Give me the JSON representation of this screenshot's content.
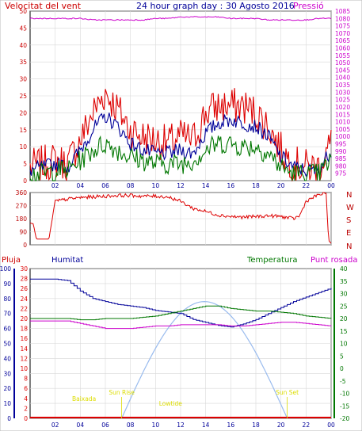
{
  "header": {
    "left": "Velocitat del vent",
    "center": "24 hour graph day : 30 Agosto 2016",
    "right": "Pressió"
  },
  "colors": {
    "red": "#dd0000",
    "blue": "#000099",
    "green": "#007700",
    "magenta": "#cc00cc",
    "frame": "#000000",
    "dir_red": "#bb0000",
    "sun": "#99bbee",
    "tide": "#dddd00",
    "wind_ylabel": "#cc0000"
  },
  "x_ticks": [
    "02",
    "04",
    "06",
    "08",
    "10",
    "12",
    "14",
    "16",
    "18",
    "20",
    "22",
    "00"
  ],
  "chart_data": [
    {
      "type": "line",
      "title": "",
      "y_left_label": "Velocitat del vent",
      "y_right_label": "Pressió",
      "ylim_left": [
        0,
        50
      ],
      "ylim_right": [
        970,
        1085
      ],
      "y_left_ticks": [
        "0",
        "5",
        "10",
        "15",
        "20",
        "25",
        "30",
        "35",
        "40",
        "45",
        "50"
      ],
      "y_right_ticks": [
        "975",
        "980",
        "985",
        "990",
        "995",
        "1000",
        "1005",
        "1010",
        "1015",
        "1020",
        "1025",
        "1030",
        "1035",
        "1040",
        "1045",
        "1050",
        "1055",
        "1060",
        "1065",
        "1070",
        "1075",
        "1080",
        "1085"
      ],
      "x_hours": [
        0,
        1,
        2,
        3,
        4,
        5,
        6,
        7,
        8,
        9,
        10,
        11,
        12,
        13,
        14,
        15,
        16,
        17,
        18,
        19,
        20,
        21,
        22,
        23,
        24
      ],
      "series": [
        {
          "name": "gust",
          "color": "red",
          "values": [
            4,
            5,
            6,
            5,
            12,
            20,
            26,
            21,
            15,
            13,
            12,
            11,
            13,
            12,
            20,
            22,
            22,
            22,
            20,
            16,
            9,
            5,
            4,
            4,
            11
          ]
        },
        {
          "name": "average",
          "color": "blue",
          "values": [
            3,
            4,
            5,
            4,
            9,
            15,
            19,
            16,
            11,
            9,
            8,
            8,
            9,
            8,
            14,
            17,
            18,
            17,
            16,
            13,
            7,
            4,
            3,
            3,
            9
          ]
        },
        {
          "name": "minimum",
          "color": "green",
          "values": [
            2,
            2,
            3,
            3,
            6,
            9,
            11,
            9,
            7,
            6,
            5,
            5,
            5,
            6,
            9,
            11,
            11,
            10,
            10,
            8,
            4,
            2,
            2,
            2,
            6
          ]
        },
        {
          "name": "pressure",
          "color": "magenta",
          "axis": "right",
          "values": [
            1080,
            1080,
            1080,
            1080,
            1080,
            1079,
            1079,
            1079,
            1079,
            1079,
            1080,
            1080,
            1081,
            1081,
            1081,
            1081,
            1080,
            1080,
            1080,
            1079,
            1079,
            1079,
            1079,
            1080,
            1080
          ]
        }
      ]
    },
    {
      "type": "line",
      "title": "",
      "ylim": [
        0,
        360
      ],
      "y_ticks": [
        "0",
        "90",
        "180",
        "270",
        "360"
      ],
      "y_right_labels": [
        "N",
        "W",
        "S",
        "E",
        "N"
      ],
      "x_hours": [
        0,
        0.25,
        0.5,
        0.8,
        1,
        1.5,
        2,
        3,
        4,
        5,
        6,
        7,
        8,
        9,
        10,
        11,
        12,
        13,
        14,
        15,
        16,
        17,
        18,
        19,
        20,
        21,
        21.5,
        22,
        23,
        23.6,
        23.8,
        24
      ],
      "series": [
        {
          "name": "wind direction",
          "color": "red",
          "values": [
            150,
            145,
            40,
            40,
            40,
            40,
            300,
            315,
            325,
            330,
            335,
            340,
            340,
            335,
            335,
            330,
            300,
            250,
            230,
            205,
            195,
            190,
            195,
            200,
            195,
            180,
            200,
            300,
            345,
            355,
            30,
            10
          ]
        }
      ]
    },
    {
      "type": "line",
      "title": "",
      "y_labels": [
        "Pluja",
        "Humitat",
        "Temperatura",
        "Punt rosada"
      ],
      "humidity_ylim": [
        0,
        100
      ],
      "humidity_ticks": [
        "0",
        "10",
        "20",
        "30",
        "40",
        "50",
        "60",
        "70",
        "80",
        "90",
        "100"
      ],
      "rain_ylim": [
        0,
        30
      ],
      "rain_ticks": [
        "0",
        "2",
        "4",
        "6",
        "8",
        "10",
        "12",
        "14",
        "16",
        "18",
        "20",
        "22",
        "24",
        "26",
        "28",
        "30"
      ],
      "temp_ylim": [
        -20,
        40
      ],
      "temp_ticks": [
        "-20",
        "-15",
        "-10",
        "-5",
        "0",
        "5",
        "10",
        "15",
        "20",
        "25",
        "30",
        "35",
        "40"
      ],
      "x_hours": [
        0,
        1,
        2,
        3,
        4,
        5,
        6,
        7,
        8,
        9,
        10,
        11,
        12,
        13,
        14,
        15,
        16,
        17,
        18,
        19,
        20,
        21,
        22,
        23,
        24
      ],
      "series": [
        {
          "name": "Humitat",
          "color": "blue",
          "axis": "humidity",
          "values": [
            93,
            93,
            93,
            92,
            85,
            80,
            78,
            76,
            75,
            74,
            72,
            71,
            70,
            66,
            64,
            62,
            61,
            63,
            66,
            70,
            74,
            78,
            81,
            84,
            87
          ]
        },
        {
          "name": "Temperatura",
          "color": "green",
          "axis": "temp",
          "values": [
            20,
            20,
            20,
            20,
            19.5,
            19.5,
            20,
            20,
            20,
            20.5,
            21,
            22,
            23,
            24,
            25,
            25,
            24,
            23.5,
            23,
            23,
            22.5,
            22,
            21,
            20.5,
            20
          ]
        },
        {
          "name": "Punt rosada",
          "color": "magenta",
          "axis": "temp",
          "values": [
            19,
            19,
            19,
            19,
            18,
            17,
            16,
            16,
            16,
            16.5,
            17,
            17,
            17.5,
            17.5,
            17.5,
            17.5,
            17,
            17,
            17.5,
            18,
            18.5,
            18.5,
            18,
            17.5,
            17
          ]
        },
        {
          "name": "Pluja",
          "color": "red",
          "axis": "rain",
          "values": [
            0,
            0,
            0,
            0,
            0,
            0,
            0,
            0,
            0,
            0,
            0,
            0,
            0,
            0,
            0,
            0,
            0,
            0,
            0,
            0,
            0,
            0,
            0,
            0,
            0
          ]
        }
      ],
      "annotations": [
        {
          "label": "Baixada",
          "hour": 4.3
        },
        {
          "label": "Sun Rise",
          "hour": 7.3
        },
        {
          "label": "Lowtide",
          "hour": 11.2
        },
        {
          "label": "Sun Set",
          "hour": 20.5
        }
      ]
    }
  ]
}
